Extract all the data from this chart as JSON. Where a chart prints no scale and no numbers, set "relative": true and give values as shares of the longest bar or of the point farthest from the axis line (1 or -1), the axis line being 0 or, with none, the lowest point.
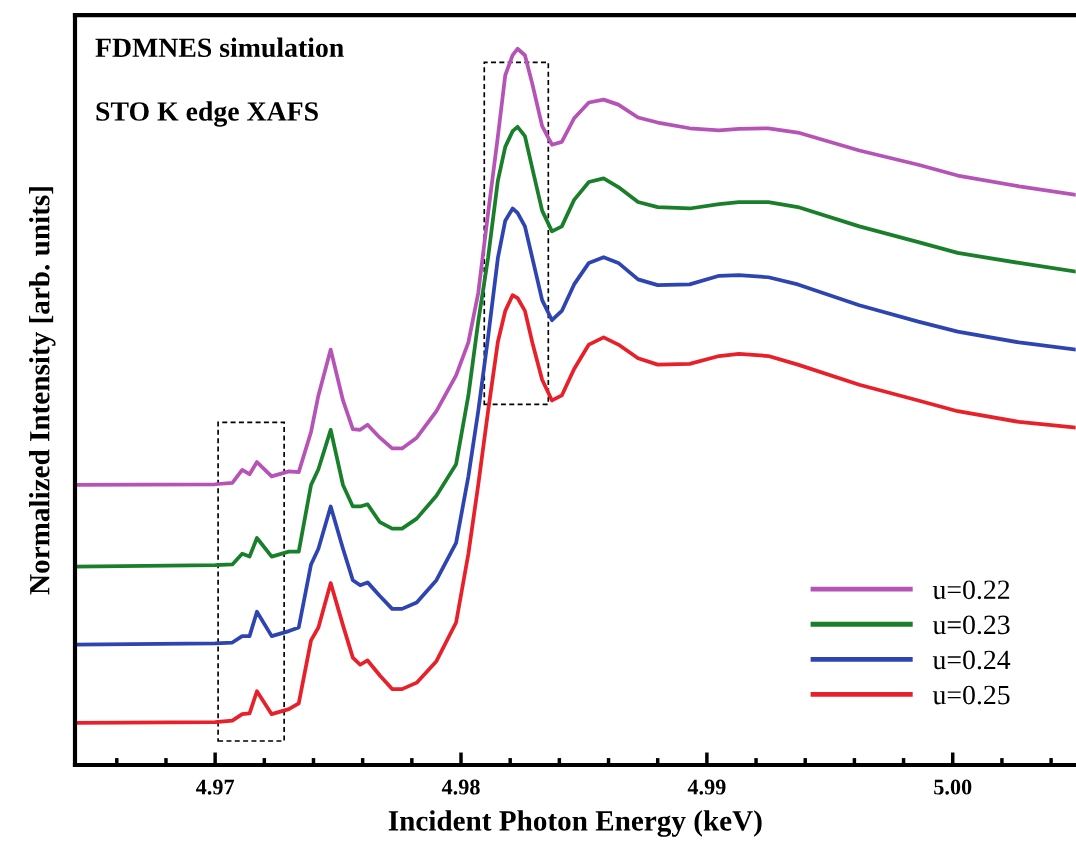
{
  "chart_data": {
    "type": "line",
    "relative": true,
    "xlabel": "Incident Photon Energy (keV)",
    "ylabel": "Normalized Intensity [arb. units]",
    "annotations": [
      "FDMNES simulation",
      "STO K edge XAFS"
    ],
    "x": [
      4.9643,
      4.97,
      4.9707,
      4.9711,
      4.9714,
      4.9717,
      4.9723,
      4.973,
      4.9734,
      4.9739,
      4.9742,
      4.9747,
      4.9752,
      4.9756,
      4.9759,
      4.9762,
      4.9767,
      4.9772,
      4.9776,
      4.9782,
      4.979,
      4.9798,
      4.9803,
      4.9807,
      4.9811,
      4.9815,
      4.9818,
      4.9821,
      4.9823,
      4.9826,
      4.9829,
      4.9833,
      4.9837,
      4.9841,
      4.9846,
      4.9852,
      4.9858,
      4.9864,
      4.9872,
      4.988,
      4.9893,
      4.9905,
      4.9913,
      4.9925,
      4.9937,
      4.9962,
      4.9986,
      5.0002,
      5.0027,
      5.005
    ],
    "xlim": [
      4.9643,
      5.005
    ],
    "xticks": [
      4.97,
      4.98,
      4.99,
      {
        "value": 5.0,
        "label": "5.00"
      }
    ],
    "legend": "bottom right",
    "line_style": "solid",
    "marker": "none",
    "grid": false,
    "series": [
      {
        "name": "u=0.22",
        "color": "#b653b6",
        "values": [
          0.391,
          0.392,
          0.394,
          0.412,
          0.406,
          0.423,
          0.403,
          0.41,
          0.409,
          0.465,
          0.516,
          0.58,
          0.509,
          0.469,
          0.468,
          0.475,
          0.457,
          0.442,
          0.442,
          0.457,
          0.494,
          0.544,
          0.59,
          0.659,
          0.77,
          0.878,
          0.963,
          0.991,
          1.0,
          0.991,
          0.951,
          0.892,
          0.866,
          0.87,
          0.903,
          0.925,
          0.929,
          0.922,
          0.904,
          0.897,
          0.889,
          0.886,
          0.888,
          0.889,
          0.883,
          0.858,
          0.838,
          0.823,
          0.808,
          0.796
        ]
      },
      {
        "name": "u=0.23",
        "color": "#1a7f2a",
        "values": [
          0.277,
          0.279,
          0.28,
          0.295,
          0.291,
          0.317,
          0.291,
          0.298,
          0.298,
          0.391,
          0.413,
          0.468,
          0.391,
          0.361,
          0.361,
          0.364,
          0.339,
          0.33,
          0.33,
          0.344,
          0.376,
          0.42,
          0.516,
          0.619,
          0.708,
          0.816,
          0.863,
          0.885,
          0.891,
          0.878,
          0.833,
          0.774,
          0.745,
          0.752,
          0.789,
          0.814,
          0.819,
          0.807,
          0.786,
          0.779,
          0.777,
          0.783,
          0.786,
          0.786,
          0.779,
          0.752,
          0.73,
          0.715,
          0.701,
          0.689
        ]
      },
      {
        "name": "u=0.24",
        "color": "#2e44b0",
        "values": [
          0.168,
          0.17,
          0.171,
          0.18,
          0.18,
          0.214,
          0.18,
          0.187,
          0.192,
          0.28,
          0.302,
          0.361,
          0.302,
          0.258,
          0.251,
          0.255,
          0.236,
          0.218,
          0.218,
          0.227,
          0.258,
          0.31,
          0.403,
          0.494,
          0.597,
          0.708,
          0.76,
          0.777,
          0.771,
          0.752,
          0.708,
          0.649,
          0.621,
          0.634,
          0.671,
          0.701,
          0.709,
          0.701,
          0.678,
          0.67,
          0.671,
          0.683,
          0.684,
          0.681,
          0.671,
          0.642,
          0.619,
          0.605,
          0.59,
          0.58
        ]
      },
      {
        "name": "u=0.25",
        "color": "#e8202a",
        "values": [
          0.059,
          0.06,
          0.062,
          0.071,
          0.072,
          0.103,
          0.071,
          0.078,
          0.086,
          0.174,
          0.192,
          0.254,
          0.195,
          0.15,
          0.14,
          0.146,
          0.125,
          0.106,
          0.106,
          0.115,
          0.145,
          0.199,
          0.295,
          0.391,
          0.494,
          0.591,
          0.634,
          0.656,
          0.652,
          0.634,
          0.59,
          0.538,
          0.509,
          0.516,
          0.553,
          0.587,
          0.597,
          0.587,
          0.568,
          0.559,
          0.56,
          0.571,
          0.574,
          0.571,
          0.559,
          0.531,
          0.509,
          0.494,
          0.479,
          0.471
        ]
      }
    ]
  }
}
